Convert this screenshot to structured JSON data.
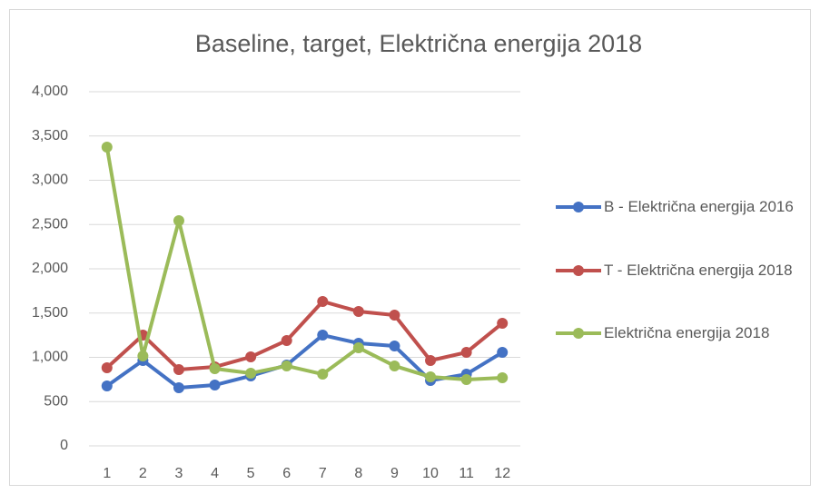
{
  "chart_data": {
    "type": "line",
    "title": "Baseline, target, Električna energija 2018",
    "categories": [
      "1",
      "2",
      "3",
      "4",
      "5",
      "6",
      "7",
      "8",
      "9",
      "10",
      "11",
      "12"
    ],
    "series": [
      {
        "name": "B - Električna energija 2016",
        "color": "#4472c4",
        "values": [
          677,
          964,
          656,
          687,
          790,
          913,
          1251,
          1159,
          1128,
          738,
          810,
          1056
        ]
      },
      {
        "name": "T - Električna energija 2018",
        "color": "#c0504d",
        "values": [
          882,
          1251,
          862,
          892,
          1005,
          1190,
          1631,
          1518,
          1477,
          964,
          1056,
          1385
        ]
      },
      {
        "name": "Električna energija 2018",
        "color": "#9bbb59",
        "values": [
          3374,
          1015,
          2544,
          872,
          821,
          903,
          810,
          1108,
          903,
          779,
          749,
          769
        ]
      }
    ],
    "ylim": [
      0,
      4000
    ],
    "yticks": [
      0,
      500,
      {
        "value": 1000,
        "label": "1,000"
      },
      {
        "value": 1500,
        "label": "1,500"
      },
      {
        "value": 2000,
        "label": "2,000"
      },
      {
        "value": 2500,
        "label": "2,500"
      },
      {
        "value": 3000,
        "label": "3,000"
      },
      {
        "value": 3500,
        "label": "3,500"
      },
      {
        "value": 4000,
        "label": "4,000"
      }
    ],
    "grid": true,
    "legend": "right"
  }
}
